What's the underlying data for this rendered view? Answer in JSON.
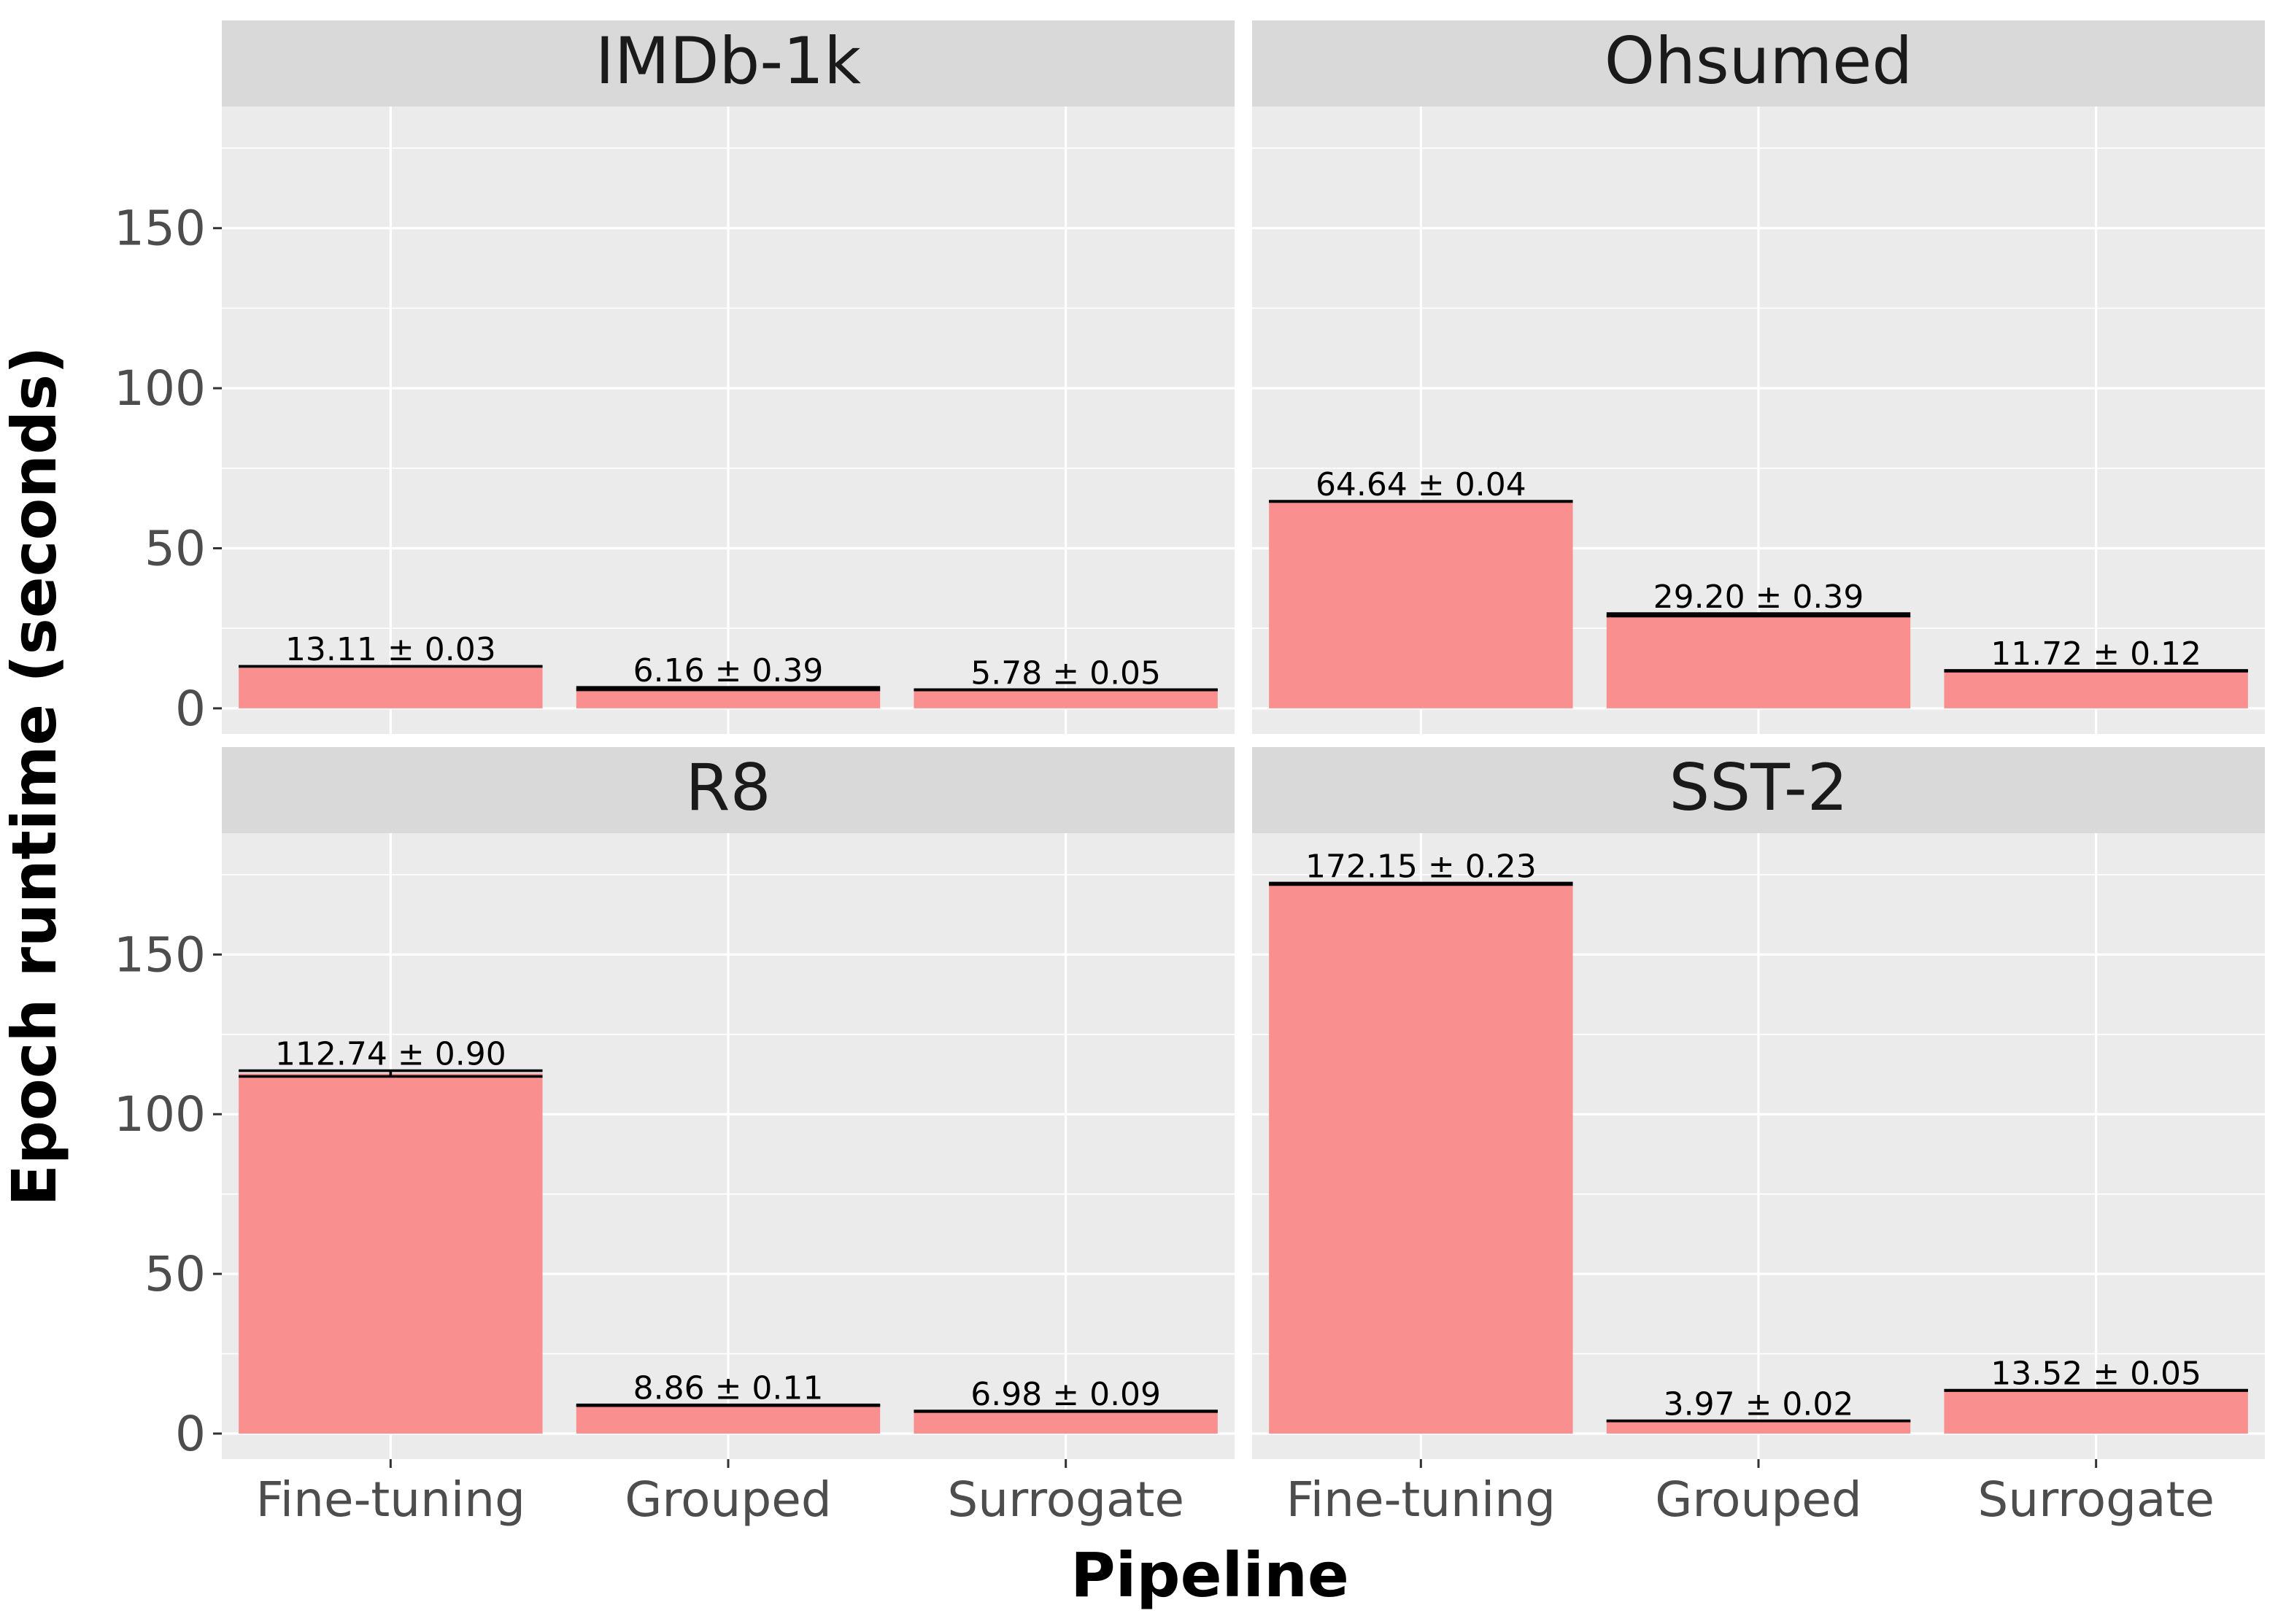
{
  "chart_data": {
    "type": "bar",
    "facet_layout": "2x2",
    "xlabel": "Pipeline",
    "ylabel": "Epoch runtime (seconds)",
    "ylim": [
      -8,
      188
    ],
    "yticks": [
      0,
      50,
      100,
      150
    ],
    "categories": [
      "Fine-tuning",
      "Grouped",
      "Surrogate"
    ],
    "grid": true,
    "bar_color": "#fa8f8f",
    "panel_background": "#ebebeb",
    "strip_background": "#d9d9d9",
    "facets": [
      {
        "title": "IMDb-1k",
        "values": [
          13.11,
          6.16,
          5.78
        ],
        "errors": [
          0.03,
          0.39,
          0.05
        ],
        "labels": [
          "13.11 ± 0.03",
          "6.16 ± 0.39",
          "5.78 ± 0.05"
        ]
      },
      {
        "title": "Ohsumed",
        "values": [
          64.64,
          29.2,
          11.72
        ],
        "errors": [
          0.04,
          0.39,
          0.12
        ],
        "labels": [
          "64.64 ± 0.04",
          "29.20 ± 0.39",
          "11.72 ± 0.12"
        ]
      },
      {
        "title": "R8",
        "values": [
          112.74,
          8.86,
          6.98
        ],
        "errors": [
          0.9,
          0.11,
          0.09
        ],
        "labels": [
          "112.74 ± 0.90",
          "8.86 ± 0.11",
          "6.98 ± 0.09"
        ]
      },
      {
        "title": "SST-2",
        "values": [
          172.15,
          3.97,
          13.52
        ],
        "errors": [
          0.23,
          0.02,
          0.05
        ],
        "labels": [
          "172.15 ± 0.23",
          "3.97 ± 0.02",
          "13.52 ± 0.05"
        ]
      }
    ]
  }
}
